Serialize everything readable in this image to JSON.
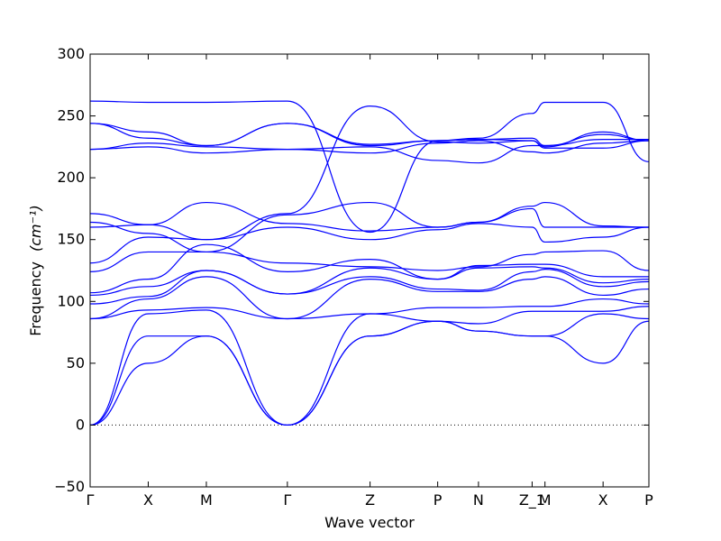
{
  "chart_data": {
    "type": "line",
    "title": "",
    "xlabel": "Wave vector",
    "ylabel_text": "Frequency",
    "ylabel_units": "(cm⁻¹)",
    "ylim": [
      -50,
      300
    ],
    "yticks": [
      -50,
      0,
      50,
      100,
      150,
      200,
      250,
      300
    ],
    "ytick_labels": [
      "−50",
      "0",
      "50",
      "100",
      "150",
      "200",
      "250",
      "300"
    ],
    "xticks": [
      {
        "label": "Γ",
        "pos": 0.0
      },
      {
        "label": "X",
        "pos": 0.104
      },
      {
        "label": "M",
        "pos": 0.208
      },
      {
        "label": "Γ",
        "pos": 0.353
      },
      {
        "label": "Z",
        "pos": 0.501
      },
      {
        "label": "P",
        "pos": 0.622
      },
      {
        "label": "N",
        "pos": 0.695
      },
      {
        "label": "Z_1",
        "pos": 0.791
      },
      {
        "label": "M",
        "pos": 0.814
      },
      {
        "label": "X",
        "pos": 0.918
      },
      {
        "label": "P",
        "pos": 1.0
      }
    ],
    "zero_line": {
      "y": 0,
      "style": "dotted"
    },
    "grid": false,
    "line_color": "#0000ff",
    "series": [
      {
        "x": [
          0,
          0.104,
          0.208,
          0.353,
          0.501,
          0.622,
          0.695,
          0.791,
          0.814,
          0.918,
          1.0
        ],
        "y": [
          0,
          50,
          72,
          0,
          72,
          84,
          76,
          72,
          72,
          50,
          84
        ]
      },
      {
        "x": [
          0,
          0.104,
          0.208,
          0.353,
          0.501,
          0.622,
          0.695,
          0.791,
          0.814,
          0.918,
          1.0
        ],
        "y": [
          0,
          72,
          72,
          0,
          72,
          84,
          76,
          72,
          72,
          90,
          86
        ]
      },
      {
        "x": [
          0,
          0.104,
          0.208,
          0.353,
          0.501,
          0.622,
          0.695,
          0.791,
          0.814,
          0.918,
          1.0
        ],
        "y": [
          0,
          90,
          93,
          0,
          90,
          84,
          82,
          92,
          92,
          92,
          96
        ]
      },
      {
        "x": [
          0,
          0.104,
          0.208,
          0.353,
          0.501,
          0.622,
          0.695,
          0.791,
          0.814,
          0.918,
          1.0
        ],
        "y": [
          86,
          93,
          95,
          86,
          90,
          95,
          95,
          96,
          96,
          102,
          98
        ]
      },
      {
        "x": [
          0,
          0.104,
          0.208,
          0.353,
          0.501,
          0.622,
          0.695,
          0.791,
          0.814,
          0.918,
          1.0
        ],
        "y": [
          86,
          102,
          120,
          86,
          118,
          108,
          108,
          118,
          120,
          105,
          110
        ]
      },
      {
        "x": [
          0,
          0.104,
          0.208,
          0.353,
          0.501,
          0.622,
          0.695,
          0.791,
          0.814,
          0.918,
          1.0
        ],
        "y": [
          98,
          104,
          125,
          106,
          120,
          110,
          109,
          124,
          126,
          112,
          116
        ]
      },
      {
        "x": [
          0,
          0.104,
          0.208,
          0.353,
          0.501,
          0.622,
          0.695,
          0.791,
          0.814,
          0.918,
          1.0
        ],
        "y": [
          105,
          112,
          125,
          106,
          127,
          118,
          127,
          128,
          127,
          115,
          118
        ]
      },
      {
        "x": [
          0,
          0.104,
          0.208,
          0.353,
          0.501,
          0.622,
          0.695,
          0.791,
          0.814,
          0.918,
          1.0
        ],
        "y": [
          107,
          118,
          146,
          124,
          134,
          118,
          129,
          130,
          130,
          120,
          120
        ]
      },
      {
        "x": [
          0,
          0.104,
          0.208,
          0.353,
          0.501,
          0.622,
          0.695,
          0.791,
          0.814,
          0.918,
          1.0
        ],
        "y": [
          124,
          140,
          140,
          131,
          128,
          125,
          128,
          138,
          140,
          141,
          125
        ]
      },
      {
        "x": [
          0,
          0.104,
          0.208,
          0.353,
          0.501,
          0.622,
          0.695,
          0.791,
          0.814,
          0.918,
          1.0
        ],
        "y": [
          131,
          152,
          150,
          160,
          150,
          158,
          163,
          160,
          148,
          152,
          160
        ]
      },
      {
        "x": [
          0,
          0.104,
          0.208,
          0.353,
          0.501,
          0.622,
          0.695,
          0.791,
          0.814,
          0.918,
          1.0
        ],
        "y": [
          160,
          162,
          180,
          163,
          157,
          160,
          164,
          175,
          160,
          160,
          160
        ]
      },
      {
        "x": [
          0,
          0.104,
          0.208,
          0.353,
          0.501,
          0.622,
          0.695,
          0.791,
          0.814,
          0.918,
          1.0
        ],
        "y": [
          164,
          155,
          140,
          170,
          180,
          160,
          164,
          177,
          180,
          161,
          160
        ]
      },
      {
        "x": [
          0,
          0.104,
          0.208,
          0.353,
          0.501,
          0.622,
          0.695,
          0.791,
          0.814,
          0.918,
          1.0
        ],
        "y": [
          171,
          162,
          150,
          171,
          258,
          229,
          228,
          230,
          224,
          224,
          230
        ]
      },
      {
        "x": [
          0,
          0.104,
          0.208,
          0.353,
          0.501,
          0.622,
          0.695,
          0.791,
          0.814,
          0.918,
          1.0
        ],
        "y": [
          223,
          225,
          220,
          223,
          220,
          228,
          230,
          221,
          220,
          228,
          230
        ]
      },
      {
        "x": [
          0,
          0.104,
          0.208,
          0.353,
          0.501,
          0.622,
          0.695,
          0.791,
          0.814,
          0.918,
          1.0
        ],
        "y": [
          223,
          228,
          225,
          223,
          225,
          214,
          212,
          226,
          226,
          231,
          231
        ]
      },
      {
        "x": [
          0,
          0.104,
          0.208,
          0.353,
          0.501,
          0.622,
          0.695,
          0.791,
          0.814,
          0.918,
          1.0
        ],
        "y": [
          244,
          232,
          226,
          244,
          226,
          230,
          231,
          230,
          225,
          237,
          230
        ]
      },
      {
        "x": [
          0,
          0.104,
          0.208,
          0.353,
          0.501,
          0.622,
          0.695,
          0.791,
          0.814,
          0.918,
          1.0
        ],
        "y": [
          244,
          237,
          226,
          244,
          227,
          230,
          231,
          232,
          226,
          235,
          230
        ]
      },
      {
        "x": [
          0,
          0.104,
          0.208,
          0.353,
          0.501,
          0.622,
          0.695,
          0.791,
          0.814,
          0.918,
          1.0
        ],
        "y": [
          262,
          261,
          261,
          262,
          156,
          230,
          232,
          252,
          261,
          261,
          213
        ]
      }
    ]
  }
}
